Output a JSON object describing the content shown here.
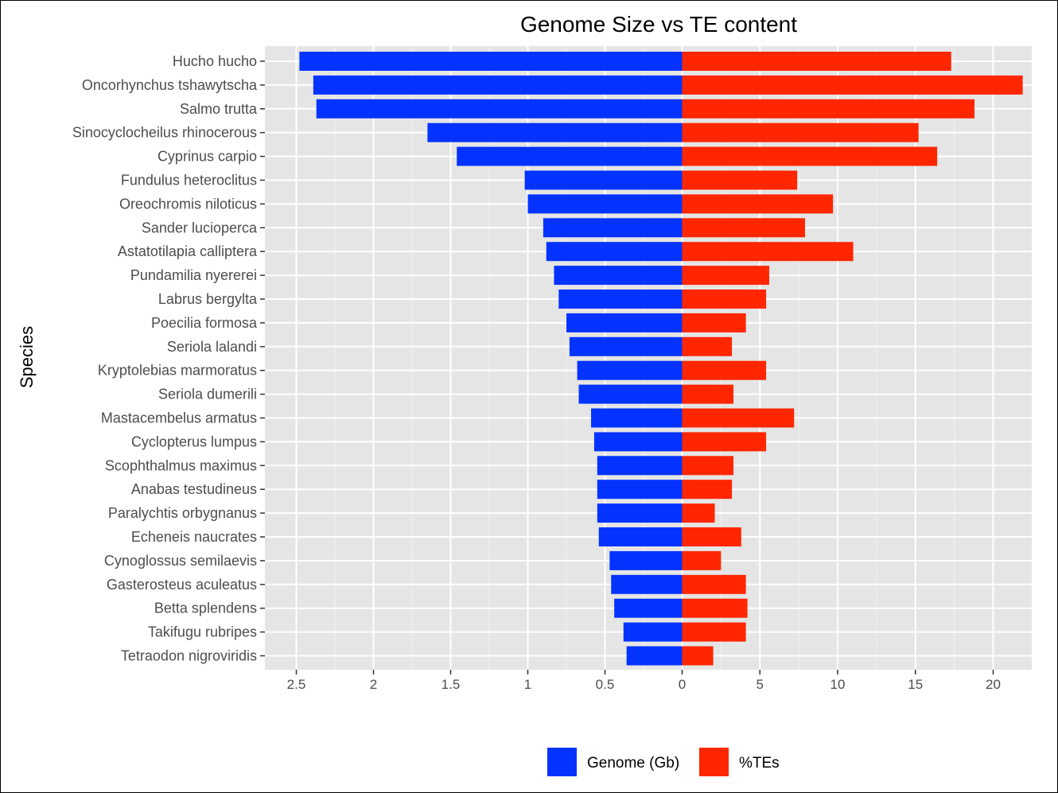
{
  "chart_data": {
    "type": "bar",
    "orientation": "horizontal-diverging",
    "title": "Genome Size vs TE content",
    "ylabel": "Species",
    "xlabel": "",
    "categories": [
      "Hucho hucho",
      "Oncorhynchus tshawytscha",
      "Salmo trutta",
      "Sinocyclocheilus rhinocerous",
      "Cyprinus carpio",
      "Fundulus heteroclitus",
      "Oreochromis niloticus",
      "Sander lucioperca",
      "Astatotilapia calliptera",
      "Pundamilia nyererei",
      "Labrus bergylta",
      "Poecilia formosa",
      "Seriola lalandi",
      "Kryptolebias marmoratus",
      "Seriola dumerili",
      "Mastacembelus armatus",
      "Cyclopterus lumpus",
      "Scophthalmus maximus",
      "Anabas testudineus",
      "Paralychtis orbygnanus",
      "Echeneis naucrates",
      "Cynoglossus semilaevis",
      "Gasterosteus aculeatus",
      "Betta splendens",
      "Takifugu rubripes",
      "Tetraodon nigroviridis"
    ],
    "series": [
      {
        "name": "Genome (Gb)",
        "color": "#0433ff",
        "side": "left",
        "values": [
          2.48,
          2.39,
          2.37,
          1.65,
          1.46,
          1.02,
          1.0,
          0.9,
          0.88,
          0.83,
          0.8,
          0.75,
          0.73,
          0.68,
          0.67,
          0.59,
          0.57,
          0.55,
          0.55,
          0.55,
          0.54,
          0.47,
          0.46,
          0.44,
          0.38,
          0.36
        ]
      },
      {
        "name": "%TEs",
        "color": "#ff2600",
        "side": "right",
        "values": [
          17.3,
          21.9,
          18.8,
          15.2,
          16.4,
          7.4,
          9.7,
          7.9,
          11.0,
          5.6,
          5.4,
          4.1,
          3.2,
          5.4,
          3.3,
          7.2,
          5.4,
          3.3,
          3.2,
          2.1,
          3.8,
          2.5,
          4.1,
          4.2,
          4.1,
          2.0
        ]
      }
    ],
    "xticks_left": [
      "2.5",
      "2",
      "1.5",
      "1",
      "0.5",
      "0"
    ],
    "xticks_left_values": [
      2.5,
      2,
      1.5,
      1,
      0.5,
      0
    ],
    "xticks_right": [
      "5",
      "10",
      "15",
      "20"
    ],
    "xticks_right_values": [
      5,
      10,
      15,
      20
    ],
    "xlim_left": [
      0,
      2.6
    ],
    "xlim_right": [
      0,
      22.5
    ],
    "grid": true,
    "legend_position": "bottom",
    "panel_background": "#e5e5e5"
  }
}
